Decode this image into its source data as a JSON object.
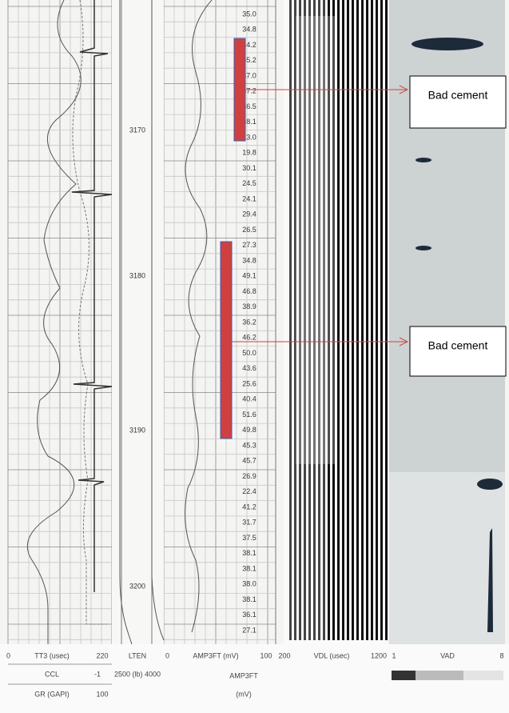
{
  "depth_labels": [
    "3170",
    "3180",
    "3190",
    "3200"
  ],
  "amplitude_column": [
    "35.0",
    "34.8",
    "34.2",
    "35.2",
    "37.0",
    "37.2",
    "36.5",
    "38.1",
    "23.0",
    "19.8",
    "30.1",
    "24.5",
    "24.1",
    "29.4",
    "26.5",
    "27.3",
    "34.8",
    "49.1",
    "46.8",
    "38.9",
    "36.2",
    "46.2",
    "50.0",
    "43.6",
    "25.6",
    "40.4",
    "51.6",
    "49.8",
    "45.3",
    "45.7",
    "26.9",
    "22.4",
    "41.2",
    "31.7",
    "37.5",
    "38.1",
    "38.1",
    "38.0",
    "38.1",
    "36.1",
    "27.1"
  ],
  "annotations": [
    "Bad cement",
    "Bad cement"
  ],
  "footer": {
    "tt3": {
      "min": "0",
      "label": "TT3 (usec)",
      "max": "220"
    },
    "ccl": {
      "label": "CCL",
      "min": "-1"
    },
    "gr": {
      "label": "GR (GAPI)",
      "max": "100"
    },
    "lten": {
      "label": "LTEN",
      "range": "2500 (lb) 4000"
    },
    "amp": {
      "min": "0",
      "label": "AMP3FT (mV)",
      "max": "100"
    },
    "amp_unit": {
      "label": "AMP3FT",
      "unit": "(mV)"
    },
    "vdl": {
      "min": "200",
      "label": "VDL (usec)",
      "max": "1200"
    },
    "vad": {
      "min": "1",
      "label": "VAD",
      "max": "8"
    }
  }
}
